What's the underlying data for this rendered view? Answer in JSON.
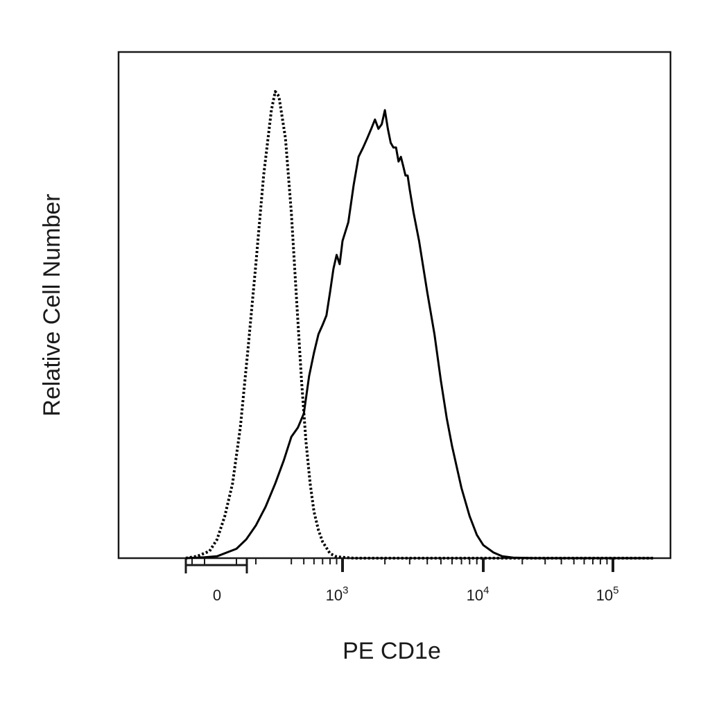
{
  "chart_data": {
    "type": "line",
    "title": "",
    "xlabel": "PE CD1e",
    "ylabel": "Relative Cell Number",
    "x_scale": "biexponential (logicle)",
    "xlim": [
      -250,
      200000
    ],
    "ylim": [
      0,
      1.08
    ],
    "grid": false,
    "legend": "none",
    "x_ticks": [
      {
        "value": 0,
        "base": "0",
        "exp": ""
      },
      {
        "value": 1000,
        "base": "10",
        "exp": "3"
      },
      {
        "value": 10000,
        "base": "10",
        "exp": "4"
      },
      {
        "value": 100000,
        "base": "10",
        "exp": "5"
      }
    ],
    "colors": {
      "solid": "#000000",
      "dotted": "#000000"
    },
    "series": [
      {
        "style": "dotted",
        "x": [
          -250,
          -160,
          -60,
          0,
          40,
          80,
          120,
          160,
          200,
          240,
          280,
          300,
          320,
          360,
          400,
          440,
          480,
          520,
          560,
          600,
          650,
          700,
          800,
          900,
          1200,
          2000,
          5000,
          20000,
          200000
        ],
        "y": [
          0,
          0.004,
          0.015,
          0.04,
          0.09,
          0.16,
          0.28,
          0.45,
          0.63,
          0.82,
          0.96,
          1.0,
          0.99,
          0.9,
          0.74,
          0.55,
          0.38,
          0.25,
          0.16,
          0.1,
          0.06,
          0.035,
          0.01,
          0.003,
          0.0,
          0.0,
          0.0,
          0.0,
          0.0
        ]
      },
      {
        "style": "solid",
        "x": [
          -250,
          -100,
          0,
          100,
          150,
          200,
          250,
          300,
          350,
          400,
          450,
          500,
          550,
          600,
          650,
          700,
          750,
          800,
          850,
          900,
          950,
          1000,
          1100,
          1200,
          1300,
          1400,
          1500,
          1600,
          1700,
          1800,
          1900,
          2000,
          2100,
          2200,
          2300,
          2400,
          2500,
          2600,
          2700,
          2800,
          2900,
          3000,
          3200,
          3500,
          4000,
          4500,
          5000,
          5500,
          6000,
          7000,
          8000,
          9000,
          10000,
          12000,
          14000,
          17000,
          25000,
          200000
        ],
        "y": [
          0,
          0.002,
          0.004,
          0.02,
          0.04,
          0.07,
          0.11,
          0.16,
          0.21,
          0.26,
          0.28,
          0.31,
          0.39,
          0.44,
          0.48,
          0.5,
          0.52,
          0.57,
          0.62,
          0.65,
          0.63,
          0.68,
          0.72,
          0.8,
          0.86,
          0.88,
          0.9,
          0.92,
          0.94,
          0.92,
          0.93,
          0.96,
          0.92,
          0.89,
          0.88,
          0.88,
          0.85,
          0.86,
          0.84,
          0.82,
          0.82,
          0.79,
          0.74,
          0.68,
          0.57,
          0.48,
          0.38,
          0.3,
          0.24,
          0.15,
          0.09,
          0.05,
          0.028,
          0.012,
          0.004,
          0.001,
          0.0,
          0.0
        ]
      }
    ]
  }
}
